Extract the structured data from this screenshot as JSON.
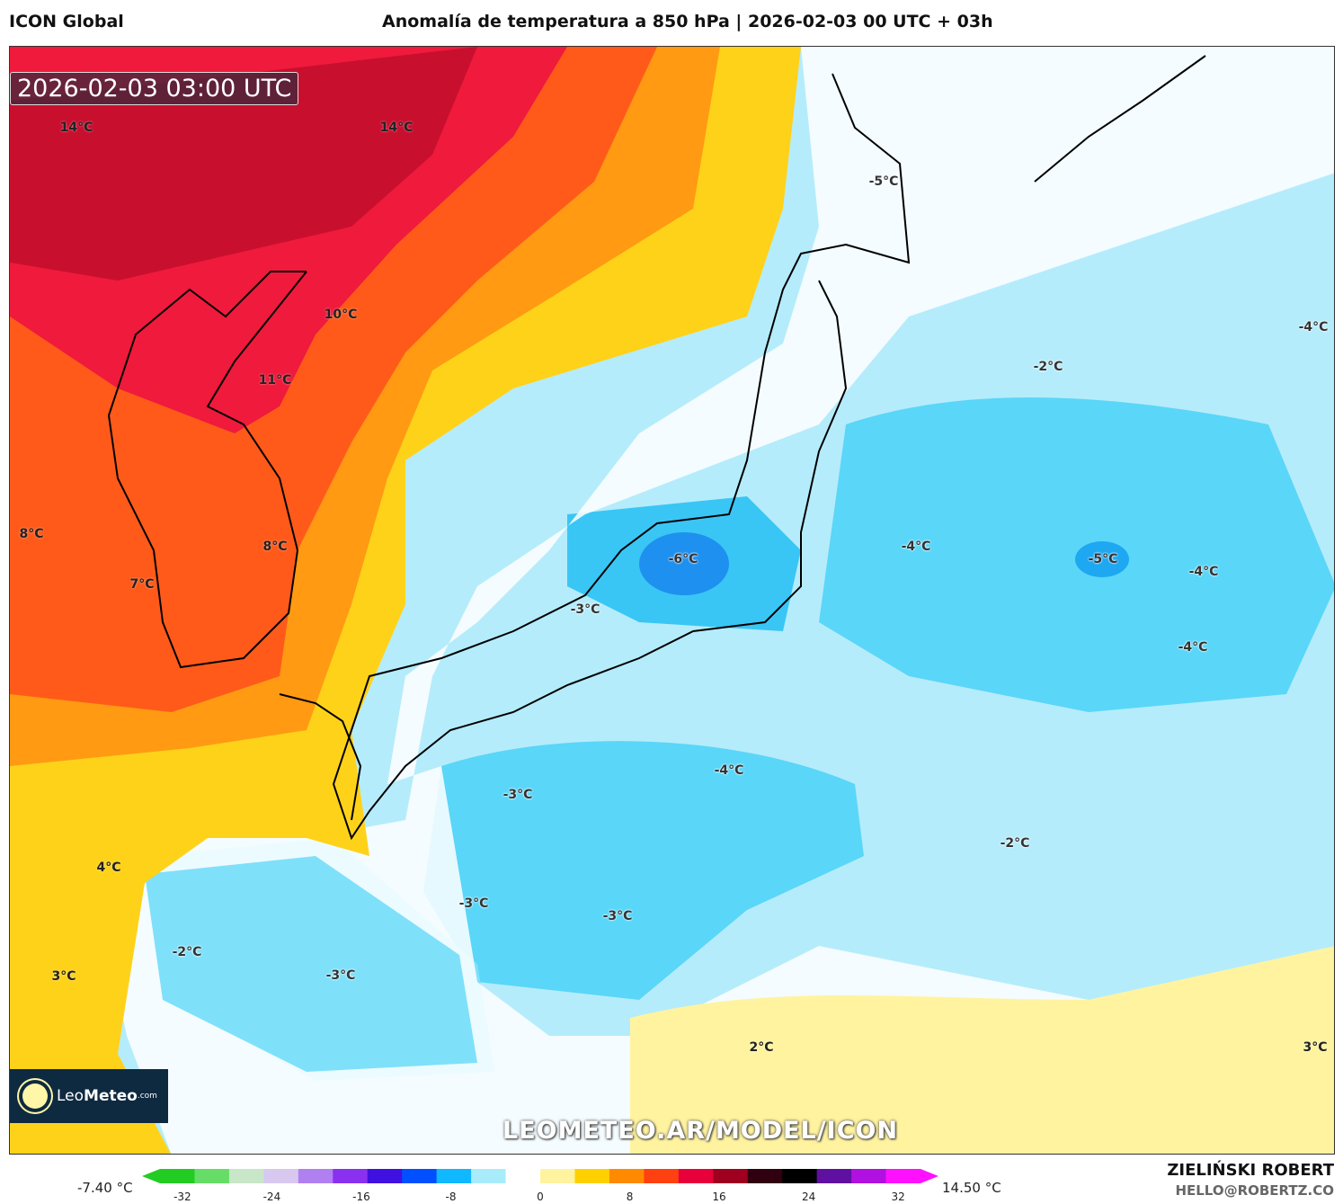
{
  "header": {
    "model": "ICON Global",
    "title": "Anomalía de temperatura a 850 hPa | 2026-02-03 00 UTC + 03h"
  },
  "map": {
    "timestamp": "2026-02-03 03:00 UTC",
    "watermark": "LEOMETEO.AR/MODEL/ICON",
    "logo": {
      "text1": "Leo",
      "text2": "Meteo",
      "text3": ".com"
    },
    "labels": [
      "14°C",
      "14°C",
      "10°C",
      "11°C",
      "8°C",
      "8°C",
      "7°C",
      "4°C",
      "3°C",
      "-2°C",
      "-3°C",
      "-5°C",
      "-4°C",
      "-2°C",
      "-4°C",
      "-6°C",
      "-3°C",
      "-5°C",
      "-4°C",
      "-4°C",
      "-4°C",
      "-3°C",
      "-2°C",
      "-3°C",
      "-3°C",
      "2°C",
      "3°C"
    ]
  },
  "colorbar": {
    "min_label": "-7.40 °C",
    "max_label": "14.50 °C",
    "ticks": [
      "-32",
      "-24",
      "-16",
      "-8",
      "0",
      "8",
      "16",
      "24",
      "32"
    ],
    "colors": [
      "#22cc22",
      "#66dd66",
      "#c8e6c8",
      "#d8c8f0",
      "#b080f0",
      "#8a30f0",
      "#4010e0",
      "#0050ff",
      "#10b8ff",
      "#a8ecfb",
      "#ffffff",
      "#fff3a0",
      "#ffd000",
      "#ff8a00",
      "#ff4010",
      "#e8003a",
      "#a00020",
      "#300010",
      "#000000",
      "#6010a0",
      "#b010e0",
      "#ff10ff"
    ]
  },
  "footer": {
    "author": "ZIELIŃSKI ROBERT",
    "email": "HELLO@ROBERTZ.CO"
  }
}
